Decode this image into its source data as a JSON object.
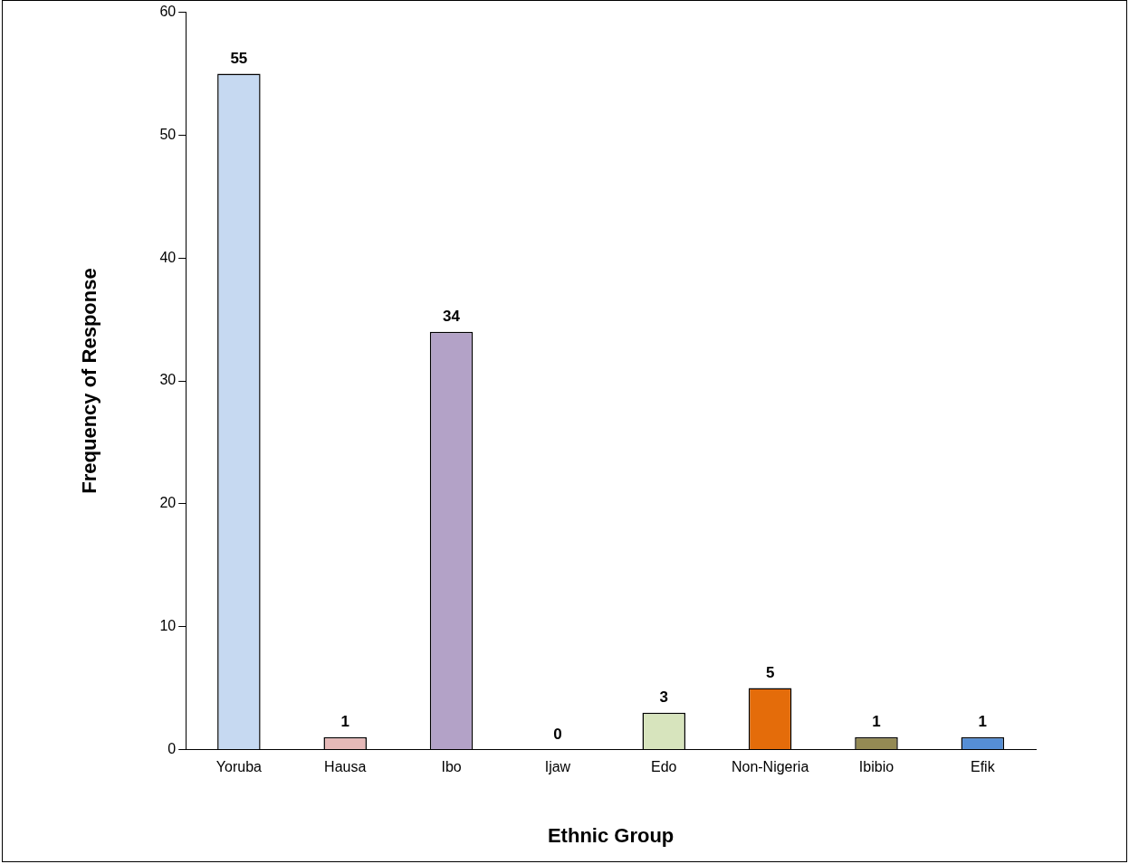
{
  "chart_data": {
    "type": "bar",
    "xlabel": "Ethnic Group",
    "ylabel": "Frequency of Response",
    "categories": [
      "Yoruba",
      "Hausa",
      "Ibo",
      "Ijaw",
      "Edo",
      "Non-Nigeria",
      "Ibibio",
      "Efik"
    ],
    "values": [
      55,
      1,
      34,
      0,
      3,
      5,
      1,
      1
    ],
    "colors": [
      "#c6d9f1",
      "#e6b9b8",
      "#b3a2c7",
      "#fac090",
      "#d7e4bd",
      "#e46c0a",
      "#948a54",
      "#558ed5"
    ],
    "ylim": [
      0,
      60
    ],
    "yticks": [
      0,
      10,
      20,
      30,
      40,
      50,
      60
    ],
    "grid": false,
    "legend": false,
    "data_labels": true
  }
}
